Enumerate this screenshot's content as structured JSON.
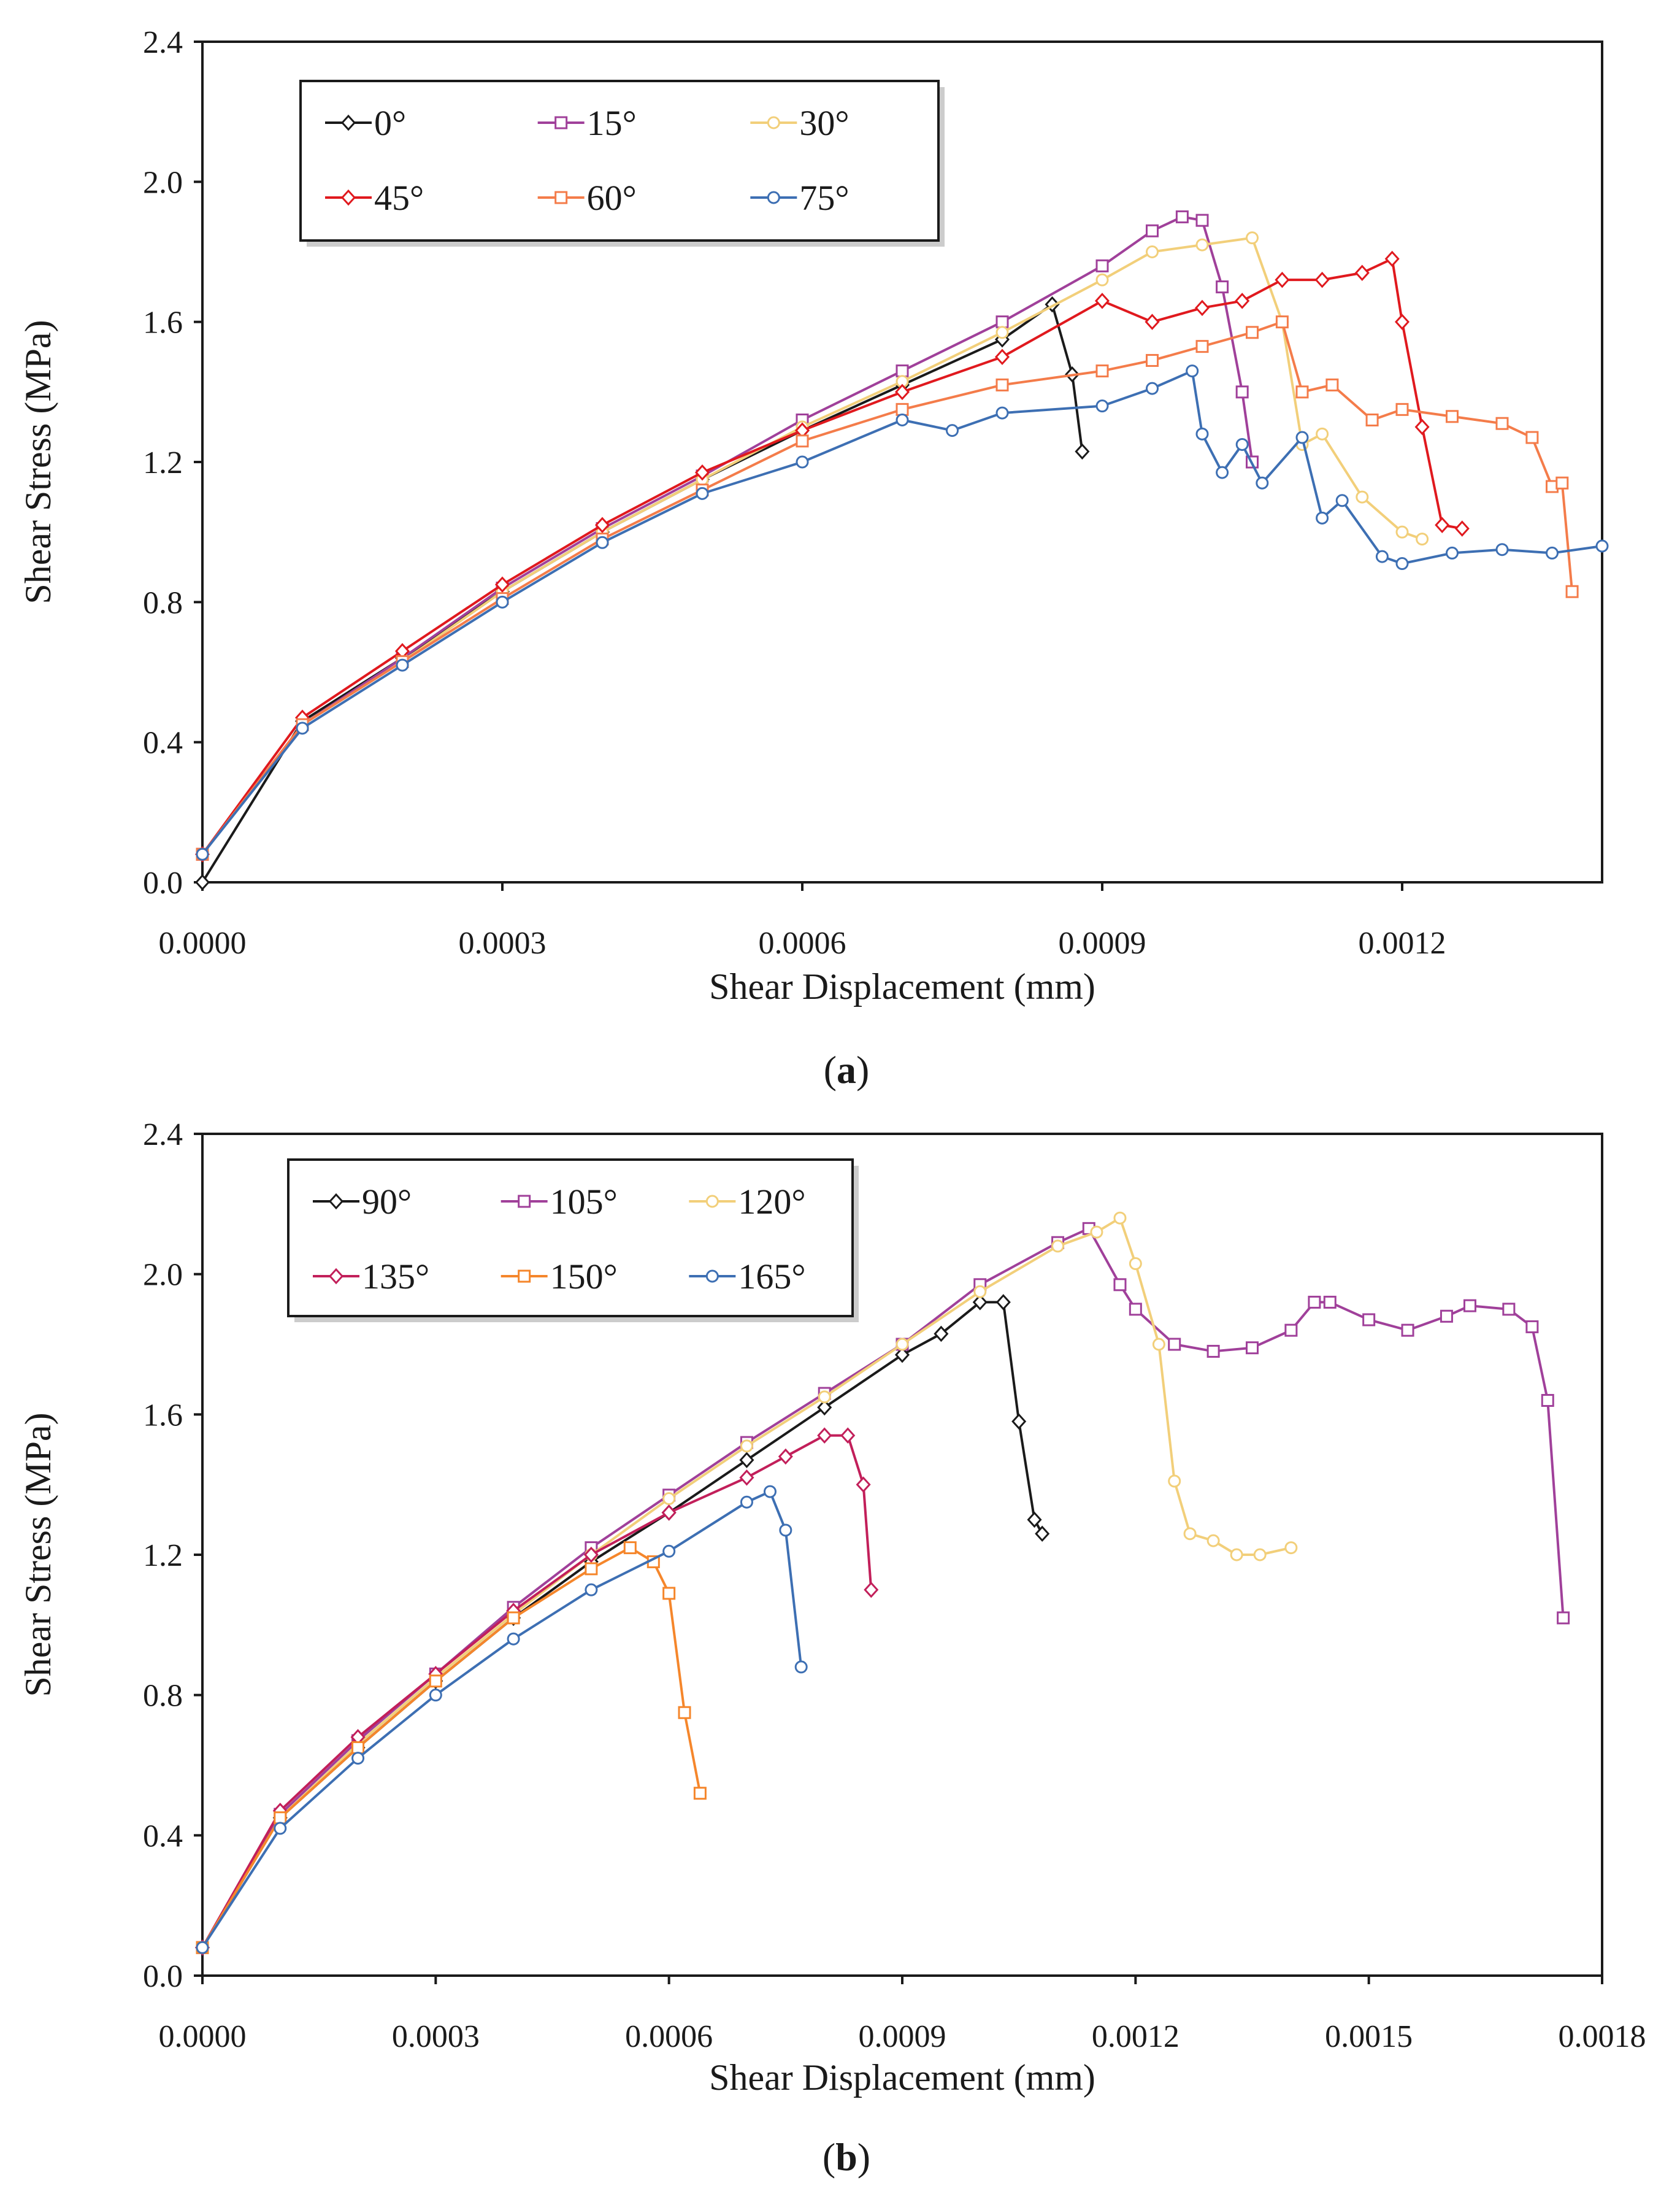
{
  "chart_data": [
    {
      "type": "line",
      "panel_label": "(a)",
      "panel_letter": "a",
      "xlabel": "Shear Displacement (mm)",
      "ylabel": "Shear Stress (MPa)",
      "xlim": [
        0,
        0.0014
      ],
      "ylim": [
        0,
        2.4
      ],
      "xticks": [
        0,
        0.0003,
        0.0006,
        0.0009,
        0.0012
      ],
      "xtick_labels": [
        "0.0000",
        "0.0003",
        "0.0006",
        "0.0009",
        "0.0012"
      ],
      "yticks": [
        0,
        0.4,
        0.8,
        1.2,
        1.6,
        2.0,
        2.4
      ],
      "ytick_labels": [
        "0.0",
        "0.4",
        "0.8",
        "1.2",
        "1.6",
        "2.0",
        "2.4"
      ],
      "legend_position": "top-left",
      "series": [
        {
          "name": "0°",
          "color": "#1a1a1a",
          "marker": "diamond",
          "x": [
            0,
            0.0001,
            0.0002,
            0.0003,
            0.0004,
            0.0005,
            0.0006,
            0.0007,
            0.0008,
            0.00085,
            0.00087,
            0.00088
          ],
          "y": [
            0.0,
            0.46,
            0.64,
            0.83,
            1.0,
            1.15,
            1.29,
            1.42,
            1.55,
            1.65,
            1.45,
            1.23
          ]
        },
        {
          "name": "15°",
          "color": "#a0409a",
          "marker": "square",
          "x": [
            0,
            0.0001,
            0.0002,
            0.0003,
            0.0004,
            0.0005,
            0.0006,
            0.0007,
            0.0008,
            0.0009,
            0.00095,
            0.00098,
            0.001,
            0.00102,
            0.00104,
            0.00105
          ],
          "y": [
            0.08,
            0.45,
            0.64,
            0.84,
            1.01,
            1.16,
            1.32,
            1.46,
            1.6,
            1.76,
            1.86,
            1.9,
            1.89,
            1.7,
            1.4,
            1.2
          ]
        },
        {
          "name": "30°",
          "color": "#f2cf7a",
          "marker": "circle",
          "x": [
            0,
            0.0001,
            0.0002,
            0.0003,
            0.0004,
            0.0005,
            0.0006,
            0.0007,
            0.0008,
            0.0009,
            0.00095,
            0.001,
            0.00105,
            0.00108,
            0.0011,
            0.00112,
            0.00116,
            0.0012,
            0.00122
          ],
          "y": [
            0.08,
            0.45,
            0.63,
            0.83,
            1.0,
            1.15,
            1.3,
            1.43,
            1.57,
            1.72,
            1.8,
            1.82,
            1.84,
            1.6,
            1.25,
            1.28,
            1.1,
            1.0,
            0.98
          ]
        },
        {
          "name": "45°",
          "color": "#e0191e",
          "marker": "diamond",
          "x": [
            0,
            0.0001,
            0.0002,
            0.0003,
            0.0004,
            0.0005,
            0.0006,
            0.0007,
            0.0008,
            0.0009,
            0.00095,
            0.001,
            0.00104,
            0.00108,
            0.00112,
            0.00116,
            0.00119,
            0.0012,
            0.00122,
            0.00124,
            0.00126
          ],
          "y": [
            0.08,
            0.47,
            0.66,
            0.85,
            1.02,
            1.17,
            1.29,
            1.4,
            1.5,
            1.66,
            1.6,
            1.64,
            1.66,
            1.72,
            1.72,
            1.74,
            1.78,
            1.6,
            1.3,
            1.02,
            1.01
          ]
        },
        {
          "name": "60°",
          "color": "#f47c4a",
          "marker": "square",
          "x": [
            0,
            0.0001,
            0.0002,
            0.0003,
            0.0004,
            0.0005,
            0.0006,
            0.0007,
            0.0008,
            0.0009,
            0.00095,
            0.001,
            0.00105,
            0.00108,
            0.0011,
            0.00113,
            0.00117,
            0.0012,
            0.00125,
            0.0013,
            0.00133,
            0.00135,
            0.00136,
            0.00137
          ],
          "y": [
            0.08,
            0.45,
            0.63,
            0.81,
            0.98,
            1.12,
            1.26,
            1.35,
            1.42,
            1.46,
            1.49,
            1.53,
            1.57,
            1.6,
            1.4,
            1.42,
            1.32,
            1.35,
            1.33,
            1.31,
            1.27,
            1.13,
            1.14,
            0.83
          ]
        },
        {
          "name": "75°",
          "color": "#3d6fb3",
          "marker": "circle",
          "x": [
            0,
            0.0001,
            0.0002,
            0.0003,
            0.0004,
            0.0005,
            0.0006,
            0.0007,
            0.00075,
            0.0008,
            0.0009,
            0.00095,
            0.00099,
            0.001,
            0.00102,
            0.00104,
            0.00106,
            0.0011,
            0.00112,
            0.00114,
            0.00118,
            0.0012,
            0.00125,
            0.0013,
            0.00135,
            0.0014
          ],
          "y": [
            0.08,
            0.44,
            0.62,
            0.8,
            0.97,
            1.11,
            1.2,
            1.32,
            1.29,
            1.34,
            1.36,
            1.41,
            1.46,
            1.28,
            1.17,
            1.25,
            1.14,
            1.27,
            1.04,
            1.09,
            0.93,
            0.91,
            0.94,
            0.95,
            0.94,
            0.96
          ]
        }
      ]
    },
    {
      "type": "line",
      "panel_label": "(b)",
      "panel_letter": "b",
      "xlabel": "Shear Displacement (mm)",
      "ylabel": "Shear Stress (MPa)",
      "xlim": [
        0,
        0.0018
      ],
      "ylim": [
        0,
        2.4
      ],
      "xticks": [
        0,
        0.0003,
        0.0006,
        0.0009,
        0.0012,
        0.0015,
        0.0018
      ],
      "xtick_labels": [
        "0.0000",
        "0.0003",
        "0.0006",
        "0.0009",
        "0.0012",
        "0.0015",
        "0.0018"
      ],
      "yticks": [
        0,
        0.4,
        0.8,
        1.2,
        1.6,
        2.0,
        2.4
      ],
      "ytick_labels": [
        "0.0",
        "0.4",
        "0.8",
        "1.2",
        "1.6",
        "2.0",
        "2.4"
      ],
      "legend_position": "top-left",
      "series": [
        {
          "name": "90°",
          "color": "#1a1a1a",
          "marker": "diamond",
          "x": [
            0,
            0.0001,
            0.0002,
            0.0003,
            0.0004,
            0.0005,
            0.0006,
            0.0007,
            0.0008,
            0.0009,
            0.00095,
            0.001,
            0.00103,
            0.00105,
            0.00107,
            0.00108
          ],
          "y": [
            0.08,
            0.45,
            0.65,
            0.84,
            1.02,
            1.18,
            1.32,
            1.47,
            1.62,
            1.77,
            1.83,
            1.92,
            1.92,
            1.58,
            1.3,
            1.26
          ]
        },
        {
          "name": "105°",
          "color": "#a0409a",
          "marker": "square",
          "x": [
            0,
            0.0001,
            0.0002,
            0.0003,
            0.0004,
            0.0005,
            0.0006,
            0.0007,
            0.0008,
            0.0009,
            0.001,
            0.0011,
            0.00114,
            0.00118,
            0.0012,
            0.00125,
            0.0013,
            0.00135,
            0.0014,
            0.00143,
            0.00145,
            0.0015,
            0.00155,
            0.0016,
            0.00163,
            0.00168,
            0.00171,
            0.00173,
            0.00175
          ],
          "y": [
            0.08,
            0.46,
            0.67,
            0.86,
            1.05,
            1.22,
            1.37,
            1.52,
            1.66,
            1.8,
            1.97,
            2.09,
            2.13,
            1.97,
            1.9,
            1.8,
            1.78,
            1.79,
            1.84,
            1.92,
            1.92,
            1.87,
            1.84,
            1.88,
            1.91,
            1.9,
            1.85,
            1.64,
            1.02
          ]
        },
        {
          "name": "120°",
          "color": "#f2cf7a",
          "marker": "circle",
          "x": [
            0,
            0.0001,
            0.0002,
            0.0003,
            0.0004,
            0.0005,
            0.0006,
            0.0007,
            0.0008,
            0.0009,
            0.001,
            0.0011,
            0.00115,
            0.00118,
            0.0012,
            0.00123,
            0.00125,
            0.00127,
            0.0013,
            0.00133,
            0.00136,
            0.0014
          ],
          "y": [
            0.08,
            0.45,
            0.66,
            0.85,
            1.03,
            1.2,
            1.36,
            1.51,
            1.65,
            1.8,
            1.95,
            2.08,
            2.12,
            2.16,
            2.03,
            1.8,
            1.41,
            1.26,
            1.24,
            1.2,
            1.2,
            1.22
          ]
        },
        {
          "name": "135°",
          "color": "#c21f5a",
          "marker": "diamond",
          "x": [
            0,
            0.0001,
            0.0002,
            0.0003,
            0.0004,
            0.0005,
            0.0006,
            0.0007,
            0.00075,
            0.0008,
            0.00083,
            0.00085,
            0.00086
          ],
          "y": [
            0.08,
            0.47,
            0.68,
            0.86,
            1.04,
            1.2,
            1.32,
            1.42,
            1.48,
            1.54,
            1.54,
            1.4,
            1.1
          ]
        },
        {
          "name": "150°",
          "color": "#f5862b",
          "marker": "square",
          "x": [
            0,
            0.0001,
            0.0002,
            0.0003,
            0.0004,
            0.0005,
            0.00055,
            0.00058,
            0.0006,
            0.00062,
            0.00064
          ],
          "y": [
            0.08,
            0.45,
            0.65,
            0.84,
            1.02,
            1.16,
            1.22,
            1.18,
            1.09,
            0.75,
            0.52
          ]
        },
        {
          "name": "165°",
          "color": "#3d6fb3",
          "marker": "circle",
          "x": [
            0,
            0.0001,
            0.0002,
            0.0003,
            0.0004,
            0.0005,
            0.0006,
            0.0007,
            0.00073,
            0.00075,
            0.00077
          ],
          "y": [
            0.08,
            0.42,
            0.62,
            0.8,
            0.96,
            1.1,
            1.21,
            1.35,
            1.38,
            1.27,
            0.88
          ]
        }
      ]
    }
  ]
}
